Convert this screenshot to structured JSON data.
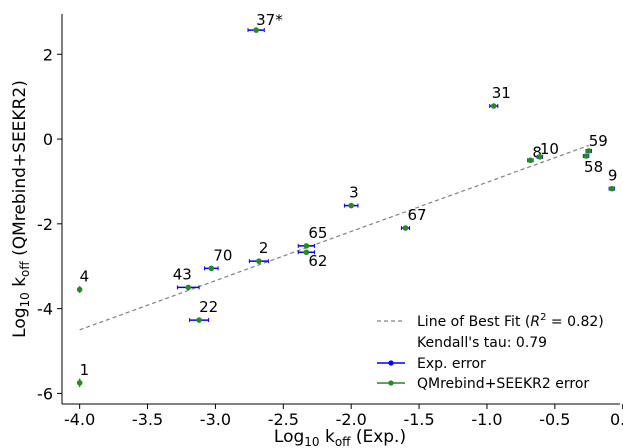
{
  "chart_data": {
    "type": "scatter",
    "xlabel_main": "Log",
    "xlabel_sub": "10",
    "xlabel_rest": " k",
    "xlabel_sub2": "off",
    "xlabel_tail": " (Exp.)",
    "ylabel_main": "Log",
    "ylabel_sub": "10",
    "ylabel_rest": " k",
    "ylabel_sub2": "off",
    "ylabel_tail": " (QMrebind+SEEKR2)",
    "xlim": [
      -4.13,
      -0.02
    ],
    "ylim": [
      -6.25,
      2.95
    ],
    "xticks": [
      "-4.0",
      "-3.5",
      "-3.0",
      "-2.5",
      "-2.0",
      "-1.5",
      "-1.0",
      "-0.5",
      "0.0"
    ],
    "xtick_values": [
      -4.0,
      -3.5,
      -3.0,
      -2.5,
      -2.0,
      -1.5,
      -1.0,
      -0.5,
      0.0
    ],
    "yticks": [
      "2",
      "0",
      "-2",
      "-4",
      "-6"
    ],
    "ytick_values": [
      2,
      0,
      -2,
      -4,
      -6
    ],
    "fit_line": {
      "x": [
        -4.0,
        -0.25
      ],
      "y": [
        -4.5,
        -0.15
      ]
    },
    "points": [
      {
        "label": "1",
        "x": -4.0,
        "y": -5.75,
        "xerr": 0.0,
        "yerr": 0.1
      },
      {
        "label": "4",
        "x": -4.0,
        "y": -3.55,
        "xerr": 0.0,
        "yerr": 0.08
      },
      {
        "label": "22",
        "x": -3.12,
        "y": -4.27,
        "xerr": 0.07,
        "yerr": 0.05
      },
      {
        "label": "43",
        "x": -3.2,
        "y": -3.5,
        "xerr": 0.08,
        "yerr": 0.04
      },
      {
        "label": "70",
        "x": -3.03,
        "y": -3.05,
        "xerr": 0.05,
        "yerr": 0.04
      },
      {
        "label": "2",
        "x": -2.68,
        "y": -2.88,
        "xerr": 0.07,
        "yerr": 0.04
      },
      {
        "label": "65",
        "x": -2.33,
        "y": -2.52,
        "xerr": 0.06,
        "yerr": 0.04
      },
      {
        "label": "62",
        "x": -2.33,
        "y": -2.67,
        "xerr": 0.06,
        "yerr": 0.04
      },
      {
        "label": "3",
        "x": -2.0,
        "y": -1.57,
        "xerr": 0.05,
        "yerr": 0.03
      },
      {
        "label": "67",
        "x": -1.6,
        "y": -2.1,
        "xerr": 0.03,
        "yerr": 0.03
      },
      {
        "label": "37*",
        "x": -2.7,
        "y": 2.57,
        "xerr": 0.06,
        "yerr": 0.03
      },
      {
        "label": "31",
        "x": -0.95,
        "y": 0.78,
        "xerr": 0.03,
        "yerr": 0.03
      },
      {
        "label": "8",
        "x": -0.68,
        "y": -0.5,
        "xerr": 0.02,
        "yerr": 0.03
      },
      {
        "label": "10",
        "x": -0.61,
        "y": -0.42,
        "xerr": 0.02,
        "yerr": 0.03
      },
      {
        "label": "59",
        "x": -0.25,
        "y": -0.28,
        "xerr": 0.02,
        "yerr": 0.03
      },
      {
        "label": "58",
        "x": -0.27,
        "y": -0.4,
        "xerr": 0.02,
        "yerr": 0.03
      },
      {
        "label": "9",
        "x": -0.08,
        "y": -1.17,
        "xerr": 0.02,
        "yerr": 0.04
      }
    ],
    "legend": {
      "position": "lower right",
      "fit": "Line of Best Fit (",
      "r2_sym": "R",
      "r2_exp": "2",
      "r2_val": " = 0.82)",
      "tau": "Kendall's tau: 0.79",
      "exp_err": "Exp. error",
      "calc_err": "QMrebind+SEEKR2 error"
    },
    "colors": {
      "fit_line": "#808080",
      "exp_err": "#0000ff",
      "calc_err": "#228b22",
      "marker": "#228b22"
    }
  }
}
